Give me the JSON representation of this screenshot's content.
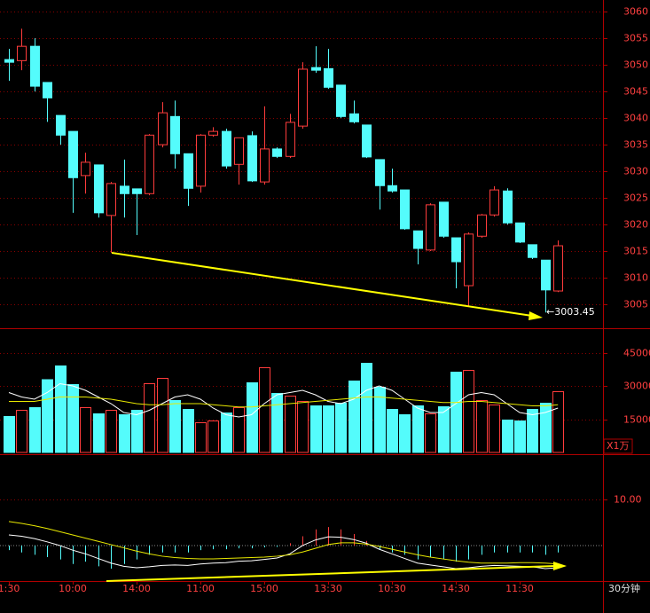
{
  "chart_data": [
    {
      "type": "candlestick",
      "categories": [
        "1:30",
        null,
        null,
        null,
        null,
        "10:00",
        null,
        null,
        null,
        null,
        "14:00",
        null,
        null,
        null,
        null,
        "11:00",
        null,
        null,
        null,
        null,
        "15:00",
        null,
        null,
        null,
        null,
        "13:30",
        null,
        null,
        null,
        null,
        "10:30",
        null,
        null,
        null,
        null,
        "14:30",
        null,
        null,
        null,
        null,
        "11:30",
        null,
        null,
        null
      ],
      "open": [
        3051,
        3050.8,
        3053.5,
        3046.7,
        3040.5,
        3037.5,
        3029.2,
        3031.2,
        3021.7,
        3027.2,
        3026.7,
        3025.8,
        3035,
        3040.3,
        3033.3,
        3027.2,
        3036.8,
        3037.5,
        3031.3,
        3036.7,
        3028,
        3034.2,
        3032.8,
        3038.5,
        3049.5,
        3049.3,
        3046.2,
        3040.8,
        3038.7,
        3032.2,
        3027.3,
        3026.5,
        3018.8,
        3015.2,
        3024.2,
        3017.5,
        3008.5,
        3017.8,
        3021.8,
        3026.3,
        3020.3,
        3016.2,
        3013.3,
        3007.5
      ],
      "high": [
        3053,
        3056.8,
        3055,
        3046.7,
        3040.5,
        3037.5,
        3033.5,
        3031.2,
        3028,
        3032.2,
        3026.7,
        3037,
        3043,
        3043.3,
        3033.3,
        3037,
        3038.3,
        3038,
        3036.3,
        3037.5,
        3042.2,
        3034.5,
        3040.8,
        3050.5,
        3053.5,
        3053,
        3046.2,
        3043.3,
        3038.7,
        3032.2,
        3030.5,
        3026.5,
        3018.8,
        3024,
        3024.2,
        3017.5,
        3018.5,
        3022,
        3027.2,
        3026.8,
        3020.3,
        3016.2,
        3013.3,
        3017
      ],
      "low": [
        3047,
        3049,
        3045,
        3039.3,
        3035,
        3022.2,
        3025.8,
        3021.3,
        3014.7,
        3021.3,
        3018,
        3025.5,
        3034.5,
        3030.5,
        3023.5,
        3026,
        3036.5,
        3030.5,
        3027.5,
        3028,
        3027.5,
        3032.5,
        3032.5,
        3038,
        3048.5,
        3045.5,
        3040,
        3039,
        3032.5,
        3022.8,
        3026,
        3019,
        3012.5,
        3015,
        3017.5,
        3008,
        3004.5,
        3017.5,
        3021.5,
        3020,
        3016.5,
        3013.5,
        3003.45,
        3007.3
      ],
      "close": [
        3050.5,
        3053.5,
        3046,
        3043.8,
        3036.8,
        3028.8,
        3031.7,
        3022.2,
        3027.7,
        3025.8,
        3025.8,
        3036.8,
        3041,
        3033.3,
        3026.8,
        3036.8,
        3037.5,
        3031,
        3036.3,
        3028.2,
        3034.2,
        3032.8,
        3039.2,
        3049.2,
        3049,
        3045.8,
        3040.3,
        3039.3,
        3032.7,
        3027.3,
        3026.3,
        3019.2,
        3015.5,
        3023.7,
        3017.8,
        3013,
        3018.2,
        3021.8,
        3026.5,
        3020.3,
        3016.7,
        3013.8,
        3007.7,
        3016
      ],
      "up_color": "#ff3c3c",
      "down_color": "#54fcfc",
      "ylim": [
        3000.5,
        3062.2
      ],
      "yticks": [
        3005,
        3010,
        3015,
        3020,
        3025,
        3030,
        3035,
        3040,
        3045,
        3050,
        3055,
        3060
      ],
      "grid": true,
      "annotation": "←3003.45",
      "period": "30分钟"
    },
    {
      "type": "bar",
      "values": [
        16200,
        19000,
        20200,
        32800,
        39000,
        30600,
        20200,
        17400,
        19000,
        17000,
        19000,
        31000,
        33400,
        23400,
        19400,
        13400,
        14200,
        17800,
        20200,
        31400,
        38200,
        26600,
        25400,
        23000,
        21000,
        21000,
        22200,
        32200,
        40200,
        29400,
        19400,
        17000,
        21000,
        17400,
        20600,
        36200,
        37000,
        23400,
        21400,
        14600,
        14200,
        19400,
        22200,
        27400
      ],
      "lines": [
        {
          "color": "#ffffff",
          "values": [
            27000,
            25000,
            24000,
            27000,
            31000,
            30000,
            28000,
            25000,
            22000,
            18000,
            17000,
            19000,
            22000,
            25000,
            26000,
            24000,
            20000,
            17000,
            16000,
            17000,
            22000,
            26000,
            27000,
            28000,
            26000,
            23000,
            22000,
            24000,
            28000,
            30000,
            28000,
            24000,
            20000,
            18000,
            18000,
            22000,
            26000,
            27000,
            26000,
            22000,
            18000,
            17000,
            18000,
            20000
          ]
        },
        {
          "color": "#e8e800",
          "values": [
            23000,
            23000,
            23000,
            24000,
            25000,
            25000,
            25000,
            24500,
            24000,
            23000,
            22000,
            21500,
            21500,
            22000,
            22000,
            22000,
            21500,
            21000,
            20500,
            20500,
            21000,
            21500,
            22000,
            22500,
            23000,
            23500,
            24000,
            24500,
            25000,
            25000,
            24500,
            24000,
            23500,
            23000,
            22500,
            22500,
            23000,
            23000,
            22500,
            22000,
            21500,
            21000,
            21000,
            21500
          ]
        }
      ],
      "ylim": [
        0,
        55200
      ],
      "yticks": [
        15000,
        30000,
        45000
      ],
      "grid": true,
      "unit": "X1万"
    },
    {
      "type": "macd",
      "values": [
        -1,
        -1.5,
        -2,
        -2.5,
        -3,
        -4,
        -3.5,
        -4.5,
        -5,
        -4,
        -3,
        -2,
        -1.5,
        -1.5,
        -1.5,
        -1,
        -0.8,
        -0.8,
        -0.6,
        -0.6,
        -0.4,
        -0.3,
        0.5,
        2,
        3.5,
        4,
        3.5,
        2.5,
        1,
        -0.8,
        -1.5,
        -2,
        -3,
        -2.5,
        -3,
        -3.5,
        -3,
        -2,
        -1.5,
        -1.5,
        -1.5,
        -1.5,
        -2,
        -1.5
      ],
      "lines": [
        {
          "color": "#ffffff",
          "values": [
            2.3,
            2.0,
            1.5,
            0.8,
            0,
            -1,
            -1.8,
            -2.8,
            -3.8,
            -4.5,
            -4.8,
            -4.6,
            -4.3,
            -4.2,
            -4.3,
            -4.0,
            -3.8,
            -3.7,
            -3.4,
            -3.3,
            -3.0,
            -2.7,
            -1.8,
            0,
            1.2,
            1.9,
            1.8,
            1.3,
            0.5,
            -0.8,
            -1.8,
            -2.8,
            -3.8,
            -4.2,
            -4.6,
            -5.0,
            -4.8,
            -4.5,
            -4.3,
            -4.4,
            -4.5,
            -4.6,
            -5.0,
            -4.8
          ]
        },
        {
          "color": "#e8e800",
          "values": [
            5.2,
            4.8,
            4.3,
            3.7,
            3.0,
            2.3,
            1.6,
            0.9,
            0.2,
            -0.5,
            -1.2,
            -1.8,
            -2.3,
            -2.6,
            -2.8,
            -2.9,
            -2.9,
            -2.8,
            -2.7,
            -2.6,
            -2.5,
            -2.3,
            -2.0,
            -1.4,
            -0.6,
            0.2,
            0.6,
            0.6,
            0.3,
            -0.2,
            -0.8,
            -1.4,
            -2.0,
            -2.5,
            -2.9,
            -3.3,
            -3.6,
            -3.8,
            -3.8,
            -3.8,
            -3.7,
            -3.7,
            -3.8,
            -4.0
          ]
        }
      ],
      "ylim": [
        -7.5,
        19.4
      ],
      "yticks": [
        {
          "value": 10,
          "label": "10.00"
        }
      ],
      "grid": true
    }
  ]
}
